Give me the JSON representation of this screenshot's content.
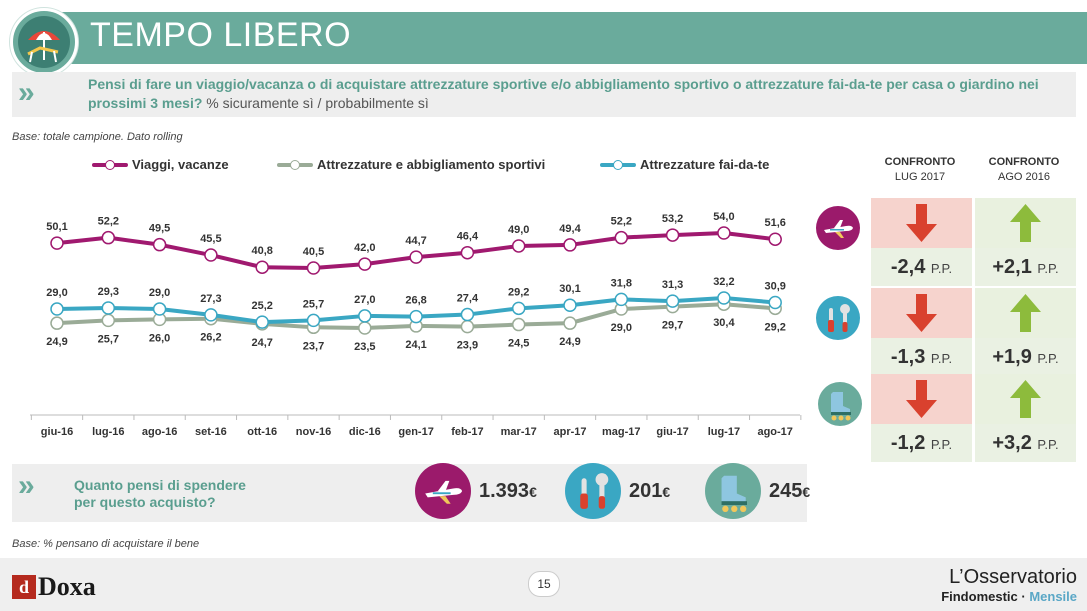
{
  "header": {
    "title": "TEMPO LIBERO"
  },
  "question": {
    "bold": "Pensi di fare un viaggio/vacanza  o di acquistare attrezzature sportive e/o abbigliamento  sportivo o attrezzature fai-da-te per casa o giardino nei prossimi  3 mesi?",
    "normal": "% sicuramente sì / probabilmente  sì"
  },
  "base_top": "Base: totale campione. Dato rolling",
  "base_bottom": "Base: % pensano di acquistare il bene",
  "colors": {
    "accent": "#6aab9c",
    "viaggi": "#a0196f",
    "sport": "#9aab97",
    "faidate": "#3aa7c3",
    "down": "#d9412e",
    "up": "#8dbb3c"
  },
  "chart_data": {
    "type": "line",
    "categories": [
      "giu-16",
      "lug-16",
      "ago-16",
      "set-16",
      "ott-16",
      "nov-16",
      "dic-16",
      "gen-17",
      "feb-17",
      "mar-17",
      "apr-17",
      "mag-17",
      "giu-17",
      "lug-17",
      "ago-17"
    ],
    "series": [
      {
        "name": "Viaggi, vacanze",
        "values": [
          50.1,
          52.2,
          49.5,
          45.5,
          40.8,
          40.5,
          42.0,
          44.7,
          46.4,
          49.0,
          49.4,
          52.2,
          53.2,
          54.0,
          51.6
        ],
        "labels": [
          "50,1",
          "52,2",
          "49,5",
          "45,5",
          "40,8",
          "40,5",
          "42,0",
          "44,7",
          "46,4",
          "49,0",
          "49,4",
          "52,2",
          "53,2",
          "54,0",
          "51,6"
        ],
        "color": "#a0196f",
        "label_pos": "above"
      },
      {
        "name": "Attrezzature e abbigliamento sportivi",
        "values": [
          24.9,
          25.7,
          26.0,
          26.2,
          24.7,
          23.7,
          23.5,
          24.1,
          23.9,
          24.5,
          24.9,
          29.0,
          29.7,
          30.4,
          29.2
        ],
        "labels": [
          "24,9",
          "25,7",
          "26,0",
          "26,2",
          "24,7",
          "23,7",
          "23,5",
          "24,1",
          "23,9",
          "24,5",
          "24,9",
          "29,0",
          "29,7",
          "30,4",
          "29,2"
        ],
        "color": "#9aab97",
        "label_pos": "below"
      },
      {
        "name": "Attrezzature fai-da-te",
        "values": [
          29.0,
          29.3,
          29.0,
          27.3,
          25.2,
          25.7,
          27.0,
          26.8,
          27.4,
          29.2,
          30.1,
          31.8,
          31.3,
          32.2,
          30.9
        ],
        "labels": [
          "29,0",
          "29,3",
          "29,0",
          "27,3",
          "25,2",
          "25,7",
          "27,0",
          "26,8",
          "27,4",
          "29,2",
          "30,1",
          "31,8",
          "31,3",
          "32,2",
          "30,9"
        ],
        "color": "#3aa7c3",
        "label_pos": "above"
      }
    ]
  },
  "comparison": {
    "head1": {
      "line1": "CONFRONTO",
      "line2": "LUG 2017"
    },
    "head2": {
      "line1": "CONFRONTO",
      "line2": "AGO 2016"
    },
    "unit": "P.P.",
    "rows": [
      {
        "icon": "airplane-icon",
        "vs_lug": "-2,4",
        "vs_ago": "+2,1"
      },
      {
        "icon": "tools-icon",
        "vs_lug": "-1,3",
        "vs_ago": "+1,9"
      },
      {
        "icon": "skates-icon",
        "vs_lug": "-1,2",
        "vs_ago": "+3,2"
      }
    ]
  },
  "spend": {
    "question_line1": "Quanto pensi di spendere",
    "question_line2": "per questo acquisto?",
    "items": [
      {
        "icon": "airplane-icon",
        "value": "1.393",
        "currency": "€"
      },
      {
        "icon": "tools-icon",
        "value": "201",
        "currency": "€"
      },
      {
        "icon": "skates-icon",
        "value": "245",
        "currency": "€"
      }
    ]
  },
  "footer": {
    "page": "15",
    "brand_left": "Doxa",
    "brand_right_line1": "L’Osservatorio",
    "brand_right_line2a": "Findomestic · ",
    "brand_right_line2b": "Mensile"
  }
}
